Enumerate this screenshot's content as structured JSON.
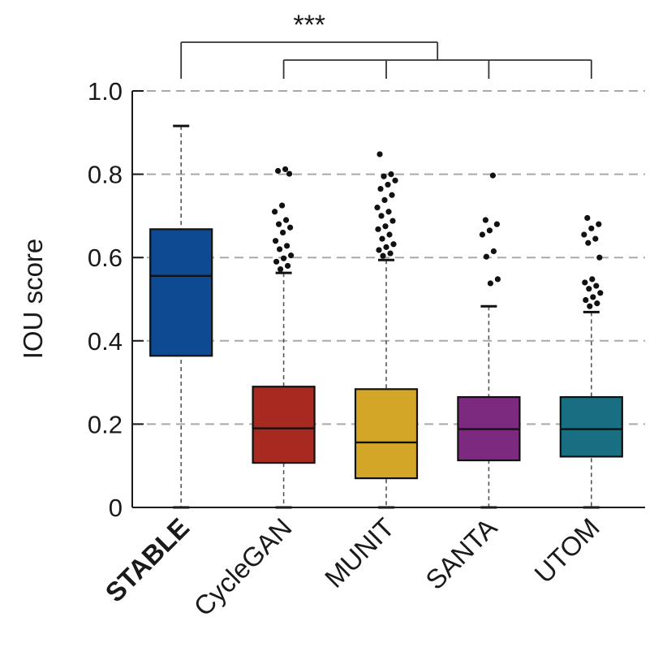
{
  "chart_data": {
    "type": "box",
    "ylabel": "IOU score",
    "ylim": [
      0,
      1.0
    ],
    "yticks": [
      0,
      0.2,
      0.4,
      0.6,
      0.8,
      1.0
    ],
    "ytick_labels": [
      "0",
      "0.2",
      "0.4",
      "0.6",
      "0.8",
      "1.0"
    ],
    "grid": "horizontal dashed",
    "significance": {
      "label": "***",
      "reference": "STABLE",
      "compared": [
        "CycleGAN",
        "MUNIT",
        "SANTA",
        "UTOM"
      ]
    },
    "series": [
      {
        "category": "STABLE",
        "bold": true,
        "color": "#0d4a91",
        "min": 0,
        "q1": 0.364,
        "median": 0.556,
        "q3": 0.668,
        "max": 0.916,
        "outliers": []
      },
      {
        "category": "CycleGAN",
        "bold": false,
        "color": "#a8291f",
        "min": 0,
        "q1": 0.107,
        "median": 0.19,
        "q3": 0.29,
        "max": 0.563,
        "outliers": [
          0.812,
          0.808,
          0.801,
          0.725,
          0.71,
          0.69,
          0.68,
          0.672,
          0.66,
          0.64,
          0.628,
          0.62,
          0.605,
          0.598,
          0.59,
          0.58,
          0.572
        ]
      },
      {
        "category": "MUNIT",
        "bold": false,
        "color": "#d4a628",
        "min": 0,
        "q1": 0.07,
        "median": 0.156,
        "q3": 0.284,
        "max": 0.594,
        "outliers": [
          0.848,
          0.8,
          0.795,
          0.785,
          0.775,
          0.765,
          0.75,
          0.738,
          0.72,
          0.71,
          0.7,
          0.688,
          0.675,
          0.668,
          0.655,
          0.645,
          0.632,
          0.625,
          0.618,
          0.61,
          0.604
        ]
      },
      {
        "category": "SANTA",
        "bold": false,
        "color": "#7b2a80",
        "min": 0,
        "q1": 0.113,
        "median": 0.188,
        "q3": 0.265,
        "max": 0.483,
        "outliers": [
          0.797,
          0.69,
          0.68,
          0.665,
          0.655,
          0.615,
          0.602,
          0.548,
          0.538
        ]
      },
      {
        "category": "UTOM",
        "bold": false,
        "color": "#1a6e82",
        "min": 0,
        "q1": 0.122,
        "median": 0.188,
        "q3": 0.265,
        "max": 0.469,
        "outliers": [
          0.695,
          0.68,
          0.67,
          0.655,
          0.645,
          0.635,
          0.6,
          0.548,
          0.54,
          0.532,
          0.525,
          0.515,
          0.505,
          0.498,
          0.49,
          0.483
        ]
      }
    ]
  }
}
